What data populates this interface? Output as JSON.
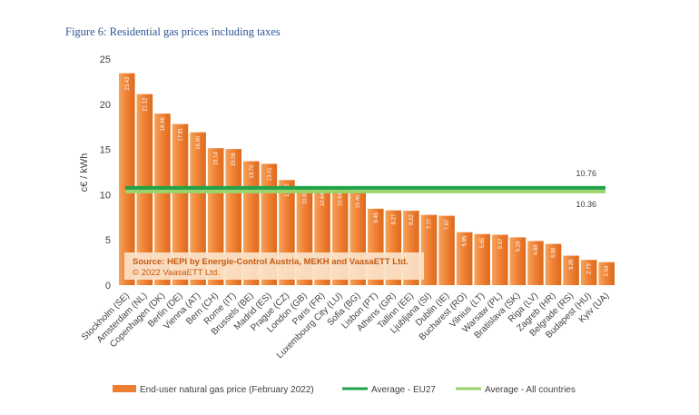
{
  "figure_title": "Figure 6: Residential gas prices including taxes",
  "chart_data": {
    "type": "bar",
    "title": "Figure 6: Residential gas prices including taxes",
    "xlabel": "",
    "ylabel": "c€ / kWh",
    "ylim": [
      0,
      25
    ],
    "yticks": [
      0,
      5,
      10,
      15,
      20,
      25
    ],
    "grid": false,
    "categories": [
      "Stockholm (SE)",
      "Amsterdam (NL)",
      "Copenhagen (DK)",
      "Berlin (DE)",
      "Vienna (AT)",
      "Bern (CH)",
      "Rome (IT)",
      "Brussels (BE)",
      "Madrid (ES)",
      "Prague (CZ)",
      "London (GB)",
      "Paris (FR)",
      "Luxembourg City (LU)",
      "Sofia (BG)",
      "Lisbon (PT)",
      "Athens (GR)",
      "Tallinn (EE)",
      "Ljubljana (SI)",
      "Dublin (IE)",
      "Bucharest (RO)",
      "Vilnius (LT)",
      "Warsaw (PL)",
      "Bratislava (SK)",
      "Riga (LV)",
      "Zagreb (HR)",
      "Belgrade (RS)",
      "Budapest (HU)",
      "Kyiv (UA)"
    ],
    "series": [
      {
        "name": "End-user natural gas price (February 2022)",
        "type": "bar",
        "color": "#ed7d31",
        "values": [
          23.43,
          21.12,
          18.96,
          17.81,
          16.9,
          15.14,
          15.05,
          13.7,
          13.41,
          11.62,
          10.82,
          10.64,
          10.64,
          10.4,
          8.45,
          8.27,
          8.22,
          7.77,
          7.67,
          5.85,
          5.65,
          5.57,
          5.28,
          4.88,
          4.56,
          3.26,
          2.79,
          2.54
        ],
        "labels": [
          "23.43",
          "21.12",
          "18.96",
          "17.81",
          "16.90",
          "15.14",
          "15.05",
          "13.70",
          "13.41",
          "11.62",
          "10.82",
          "10.64",
          "10.64",
          "10.40",
          "8.45",
          "8.27",
          "8.22",
          "7.77",
          "7.67",
          "5.85",
          "5.65",
          "5.57",
          "5.28",
          "4.88",
          "4.56",
          "3.26",
          "2.79",
          "2.54"
        ]
      },
      {
        "name": "Average - EU27",
        "type": "line",
        "color": "#22a24a",
        "value": 10.76,
        "label": "10.76"
      },
      {
        "name": "Average - All countries",
        "type": "line",
        "color": "#9bd46b",
        "value": 10.36,
        "label": "10.36"
      }
    ],
    "annotations": {
      "source_line1": "Source: HEPI by Energie-Control Austria, MEKH and VaasaETT Ltd.",
      "source_line2": "© 2022 VaasaETT Ltd."
    },
    "legend_position": "bottom"
  }
}
